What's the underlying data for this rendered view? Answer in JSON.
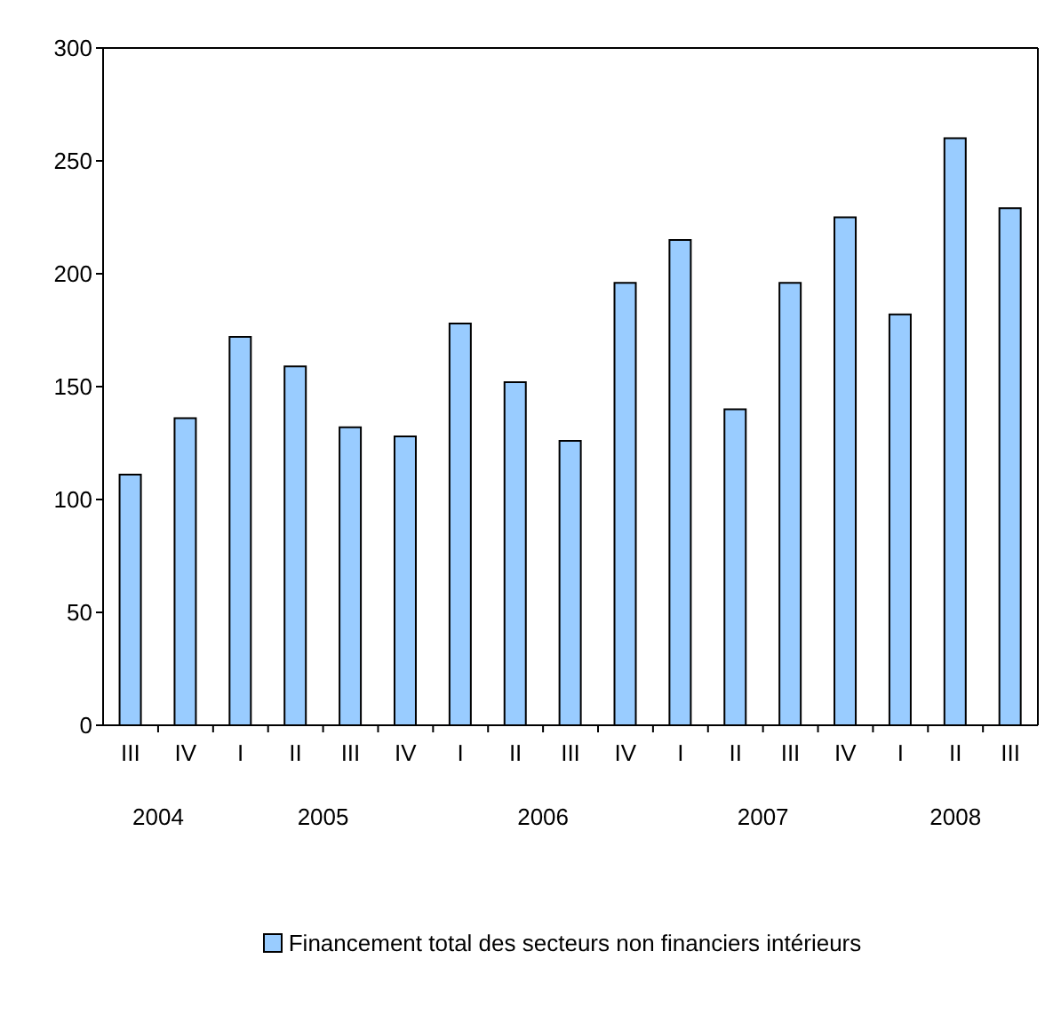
{
  "chart_data": {
    "type": "bar",
    "categories": [
      "III",
      "IV",
      "I",
      "II",
      "III",
      "IV",
      "I",
      "II",
      "III",
      "IV",
      "I",
      "II",
      "III",
      "IV",
      "I",
      "II",
      "III"
    ],
    "series": [
      {
        "name": "Financement total des secteurs non financiers intérieurs",
        "color": "#99ccff",
        "values": [
          111,
          136,
          172,
          159,
          132,
          128,
          178,
          152,
          126,
          196,
          215,
          140,
          196,
          225,
          182,
          260,
          229
        ]
      }
    ],
    "ylim": [
      0,
      300
    ],
    "yticks": [
      0,
      50,
      100,
      150,
      200,
      250,
      300
    ],
    "legend": "bottom",
    "annotations": [
      "2004",
      "2005",
      "2006",
      "2007",
      "2008"
    ]
  }
}
